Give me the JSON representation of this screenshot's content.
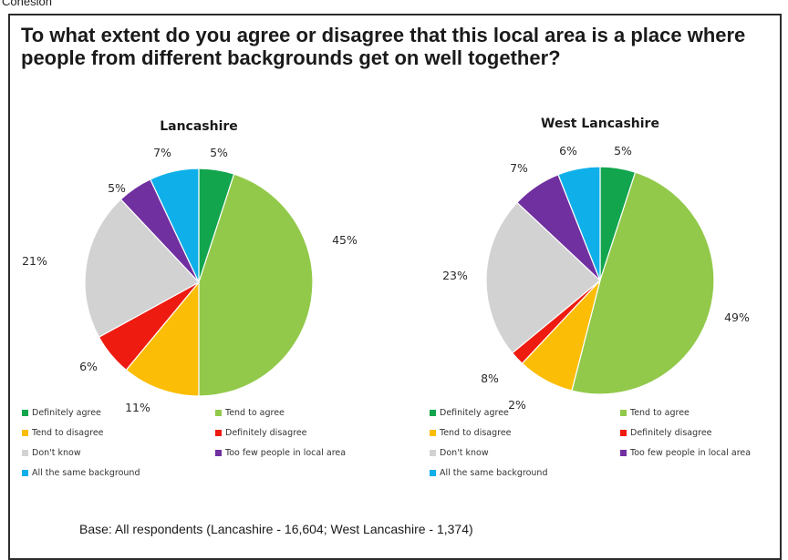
{
  "tab_label": "Cohesion",
  "title": "To what extent do you agree or disagree that this local area is a place where people from different backgrounds get on well together?",
  "base_note": "Base: All respondents (Lancashire - 16,604; West Lancashire - 1,374)",
  "colors": {
    "definitely_agree": "#12a54e",
    "tend_to_agree": "#92c94a",
    "tend_to_disagree": "#fcbd06",
    "definitely_disagree": "#ee1b11",
    "dont_know": "#d2d2d2",
    "too_few": "#7030a0",
    "all_same": "#0fb0e9"
  },
  "chart_data": [
    {
      "type": "pie",
      "title": "Lancashire",
      "categories": [
        "Definitely agree",
        "Tend to agree",
        "Tend to disagree",
        "Definitely disagree",
        "Don't know",
        "Too few people in local area",
        "All the same background"
      ],
      "values": [
        5,
        45,
        11,
        6,
        21,
        5,
        7
      ],
      "labels": [
        "5%",
        "45%",
        "11%",
        "6%",
        "21%",
        "5%",
        "7%"
      ],
      "legend": {
        "entries": [
          "Definitely agree",
          "Tend to agree",
          "Tend to disagree",
          "Definitely disagree",
          "Don't know",
          "Too few people in local area",
          "All the same background"
        ]
      }
    },
    {
      "type": "pie",
      "title": "West Lancashire",
      "categories": [
        "Definitely agree",
        "Tend to agree",
        "Tend to disagree",
        "Definitely disagree",
        "Don't know",
        "Too few people in local area",
        "All the same background"
      ],
      "values": [
        5,
        49,
        8,
        2,
        23,
        7,
        6
      ],
      "labels": [
        "5%",
        "49%",
        "8%",
        "2%",
        "23%",
        "7%",
        "6%"
      ],
      "legend": {
        "entries": [
          "Definitely agree",
          "Tend to agree",
          "Tend to disagree",
          "Definitely disagree",
          "Don't know",
          "Too few people in local area",
          "All the same background"
        ]
      }
    }
  ]
}
